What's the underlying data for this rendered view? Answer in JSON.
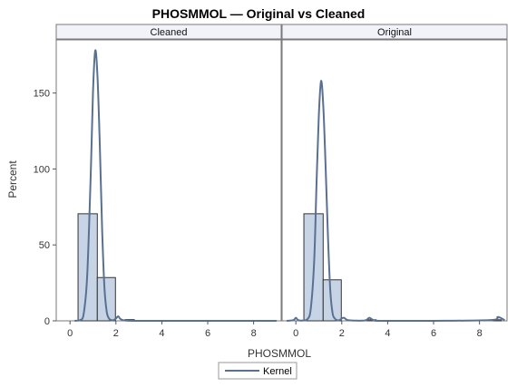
{
  "chart_data": {
    "type": "bar",
    "title": "PHOSMMOL — Original vs Cleaned",
    "xlabel": "PHOSMMOL",
    "ylabel": "Percent",
    "xlim": [
      -0.6,
      9.2
    ],
    "ylim": [
      0,
      185
    ],
    "x_ticks": [
      0,
      2,
      4,
      6,
      8
    ],
    "y_ticks": [
      0,
      50,
      100,
      150
    ],
    "bin_width": 0.5,
    "legend": {
      "entries": [
        "Kernel"
      ],
      "position": "bottom"
    },
    "colors": {
      "bar_fill": "#c6d4e6",
      "bar_edge": "#333333",
      "kernel": "#5a7091",
      "strip_bg": "#f1f3f9",
      "frame": "#7a7a7a"
    },
    "panels": [
      {
        "name": "Cleaned",
        "bins": [
          {
            "x0": 0.35,
            "x1": 1.19,
            "value": 70.5
          },
          {
            "x0": 1.19,
            "x1": 1.98,
            "value": 28.5
          },
          {
            "x0": 2.4,
            "x1": 2.8,
            "value": 0.8
          }
        ],
        "kernel": {
          "x": [
            0.2,
            0.45,
            0.6,
            0.75,
            0.9,
            1.0,
            1.1,
            1.2,
            1.3,
            1.4,
            1.5,
            1.6,
            1.7,
            1.8,
            1.9,
            2.0,
            2.1,
            2.2,
            2.4,
            3.0,
            5.0,
            9.0
          ],
          "y": [
            0,
            0.5,
            5,
            30,
            95,
            150,
            178,
            160,
            115,
            60,
            22,
            6,
            1.5,
            0.5,
            0.5,
            1.5,
            3,
            1.2,
            0.2,
            0,
            0,
            0
          ]
        }
      },
      {
        "name": "Original",
        "bins": [
          {
            "x0": 0.35,
            "x1": 1.19,
            "value": 70.5
          },
          {
            "x0": 1.19,
            "x1": 1.98,
            "value": 27
          },
          {
            "x0": 3.1,
            "x1": 3.5,
            "value": 0.7
          },
          {
            "x0": 8.6,
            "x1": 8.95,
            "value": 0.7
          }
        ],
        "kernel": {
          "x": [
            -0.4,
            -0.1,
            0.0,
            0.1,
            0.3,
            0.5,
            0.65,
            0.8,
            0.9,
            1.0,
            1.1,
            1.2,
            1.3,
            1.4,
            1.5,
            1.6,
            1.7,
            1.8,
            1.9,
            2.0,
            2.1,
            2.3,
            3.0,
            3.2,
            3.4,
            3.8,
            6.0,
            8.5,
            8.8,
            9.1
          ],
          "y": [
            0,
            0.5,
            2,
            0.5,
            0.2,
            1,
            8,
            40,
            90,
            135,
            158,
            140,
            100,
            55,
            20,
            5,
            1.5,
            0.4,
            0.5,
            1.5,
            2,
            0.4,
            0.2,
            2,
            0.3,
            0,
            0,
            0.5,
            2.5,
            0.4
          ]
        }
      }
    ]
  }
}
